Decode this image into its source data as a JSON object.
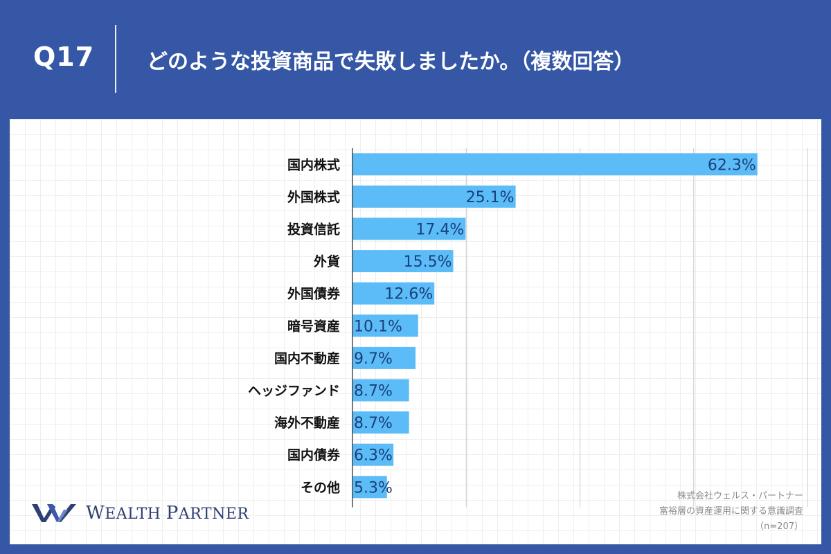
{
  "header": {
    "question_number": "Q17",
    "question_text": "どのような投資商品で失敗しましたか。（複数回答）"
  },
  "chart_data": {
    "type": "bar",
    "orientation": "horizontal",
    "categories": [
      "国内株式",
      "外国株式",
      "投資信託",
      "外貨",
      "外国債券",
      "暗号資産",
      "国内不動産",
      "ヘッジファンド",
      "海外不動産",
      "国内債券",
      "その他"
    ],
    "values": [
      62.3,
      25.1,
      17.4,
      15.5,
      12.6,
      10.1,
      9.7,
      8.7,
      8.7,
      6.3,
      5.3
    ],
    "value_labels": [
      "62.3%",
      "25.1%",
      "17.4%",
      "15.5%",
      "12.6%",
      "10.1%",
      "9.7%",
      "8.7%",
      "8.7%",
      "6.3%",
      "5.3%"
    ],
    "xlim": [
      0,
      70
    ],
    "gridline_step": 17.5,
    "bar_color": "#5bbcf7",
    "value_label_color": "#1b3f7a",
    "grid": true
  },
  "logo": {
    "name_first_initial": "W",
    "name_first_rest": "EALTH",
    "name_second_initial": "P",
    "name_second_rest": "ARTNER",
    "color": "#2f3f73"
  },
  "source": {
    "line1": "株式会社ウェルス・パートナー",
    "line2": "富裕層の資産運用に関する意識調査",
    "line3": "（n=207）"
  },
  "colors": {
    "background": "#3557a5",
    "panel": "#ffffff"
  }
}
